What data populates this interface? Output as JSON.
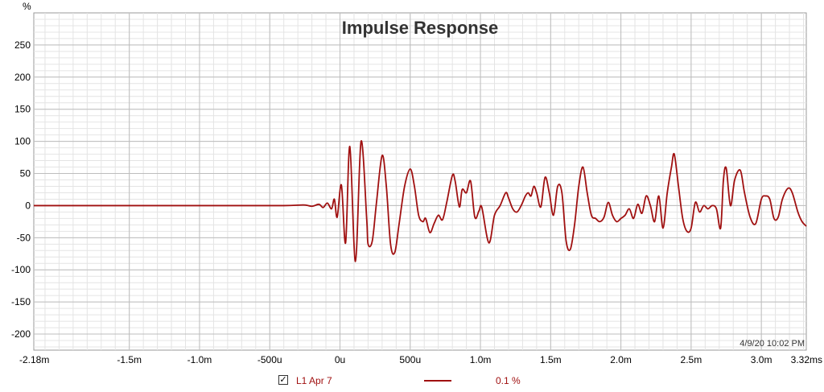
{
  "chart_data": {
    "type": "line",
    "title": "Impulse Response",
    "yunit": "%",
    "xunit": "s",
    "xlim": [
      -0.00218,
      0.00332
    ],
    "ylim": [
      -225,
      300
    ],
    "x_ticks": [
      {
        "v": -0.00218,
        "label": "-2.18m"
      },
      {
        "v": -0.0015,
        "label": "-1.5m"
      },
      {
        "v": -0.001,
        "label": "-1.0m"
      },
      {
        "v": -0.0005,
        "label": "-500u"
      },
      {
        "v": 0,
        "label": "0u"
      },
      {
        "v": 0.0005,
        "label": "500u"
      },
      {
        "v": 0.001,
        "label": "1.0m"
      },
      {
        "v": 0.0015,
        "label": "1.5m"
      },
      {
        "v": 0.002,
        "label": "2.0m"
      },
      {
        "v": 0.0025,
        "label": "2.5m"
      },
      {
        "v": 0.003,
        "label": "3.0m"
      },
      {
        "v": 0.00332,
        "label": "3.32ms"
      }
    ],
    "y_ticks": [
      250,
      200,
      150,
      100,
      50,
      0,
      -50,
      -100,
      -150,
      -200
    ],
    "timestamp": "4/9/20 10:02 PM",
    "grid": true,
    "series": [
      {
        "name": "L1 Apr 7",
        "smoothing": "0.1 %",
        "color": "#a01010",
        "points": [
          [
            -0.00218,
            0
          ],
          [
            -0.0017,
            0
          ],
          [
            -0.0012,
            0
          ],
          [
            -0.0008,
            0
          ],
          [
            -0.0004,
            0
          ],
          [
            -0.00026,
            1
          ],
          [
            -0.0002,
            -1
          ],
          [
            -0.00015,
            2
          ],
          [
            -0.00012,
            -3
          ],
          [
            -9e-05,
            4
          ],
          [
            -6e-05,
            -5
          ],
          [
            -4e-05,
            10
          ],
          [
            -2e-05,
            -18
          ],
          [
            1e-05,
            32
          ],
          [
            4e-05,
            -58
          ],
          [
            7e-05,
            92
          ],
          [
            0.00011,
            -87
          ],
          [
            0.00015,
            100
          ],
          [
            0.00019,
            -20
          ],
          [
            0.0002,
            -60
          ],
          [
            0.00023,
            -55
          ],
          [
            0.00026,
            5
          ],
          [
            0.0003,
            78
          ],
          [
            0.00033,
            30
          ],
          [
            0.00036,
            -60
          ],
          [
            0.00039,
            -73
          ],
          [
            0.00042,
            -30
          ],
          [
            0.00046,
            30
          ],
          [
            0.0005,
            57
          ],
          [
            0.00053,
            30
          ],
          [
            0.00056,
            -15
          ],
          [
            0.00059,
            -25
          ],
          [
            0.00061,
            -20
          ],
          [
            0.00064,
            -42
          ],
          [
            0.00067,
            -28
          ],
          [
            0.0007,
            -15
          ],
          [
            0.00073,
            -22
          ],
          [
            0.00076,
            5
          ],
          [
            0.0008,
            47
          ],
          [
            0.00082,
            38
          ],
          [
            0.00085,
            -2
          ],
          [
            0.00087,
            25
          ],
          [
            0.0009,
            20
          ],
          [
            0.00093,
            38
          ],
          [
            0.00096,
            -18
          ],
          [
            0.00099,
            -8
          ],
          [
            0.00101,
            -3
          ],
          [
            0.00106,
            -58
          ],
          [
            0.0011,
            -15
          ],
          [
            0.00114,
            0
          ],
          [
            0.00118,
            20
          ],
          [
            0.0012,
            12
          ],
          [
            0.00123,
            -5
          ],
          [
            0.00126,
            -10
          ],
          [
            0.00129,
            0
          ],
          [
            0.00132,
            15
          ],
          [
            0.00134,
            20
          ],
          [
            0.00136,
            15
          ],
          [
            0.00138,
            30
          ],
          [
            0.0014,
            20
          ],
          [
            0.00143,
            -2
          ],
          [
            0.00146,
            44
          ],
          [
            0.00149,
            20
          ],
          [
            0.00152,
            -15
          ],
          [
            0.00155,
            30
          ],
          [
            0.00158,
            20
          ],
          [
            0.00161,
            -55
          ],
          [
            0.00164,
            -68
          ],
          [
            0.00167,
            -30
          ],
          [
            0.0017,
            30
          ],
          [
            0.00173,
            60
          ],
          [
            0.00176,
            20
          ],
          [
            0.00179,
            -15
          ],
          [
            0.00182,
            -20
          ],
          [
            0.00185,
            -25
          ],
          [
            0.00188,
            -18
          ],
          [
            0.00191,
            5
          ],
          [
            0.00194,
            -15
          ],
          [
            0.00197,
            -25
          ],
          [
            0.002,
            -20
          ],
          [
            0.00203,
            -15
          ],
          [
            0.00206,
            -5
          ],
          [
            0.00209,
            -20
          ],
          [
            0.00212,
            2
          ],
          [
            0.00215,
            -12
          ],
          [
            0.00218,
            15
          ],
          [
            0.00221,
            0
          ],
          [
            0.00224,
            -25
          ],
          [
            0.00227,
            15
          ],
          [
            0.0023,
            -35
          ],
          [
            0.00233,
            20
          ],
          [
            0.00236,
            60
          ],
          [
            0.00238,
            80
          ],
          [
            0.00241,
            30
          ],
          [
            0.00244,
            -20
          ],
          [
            0.00247,
            -40
          ],
          [
            0.0025,
            -35
          ],
          [
            0.00253,
            5
          ],
          [
            0.00256,
            -10
          ],
          [
            0.00259,
            0
          ],
          [
            0.00262,
            -5
          ],
          [
            0.00265,
            0
          ],
          [
            0.00268,
            -5
          ],
          [
            0.00271,
            -35
          ],
          [
            0.00273,
            40
          ],
          [
            0.00275,
            58
          ],
          [
            0.00278,
            0
          ],
          [
            0.00281,
            40
          ],
          [
            0.00285,
            55
          ],
          [
            0.00288,
            20
          ],
          [
            0.00292,
            -18
          ],
          [
            0.00296,
            -28
          ],
          [
            0.003,
            10
          ],
          [
            0.00303,
            15
          ],
          [
            0.00306,
            10
          ],
          [
            0.00309,
            -20
          ],
          [
            0.00312,
            -18
          ],
          [
            0.00315,
            10
          ],
          [
            0.00319,
            27
          ],
          [
            0.00322,
            20
          ],
          [
            0.00326,
            -10
          ],
          [
            0.00329,
            -25
          ],
          [
            0.00332,
            -32
          ]
        ]
      }
    ]
  },
  "legend": {
    "checkbox_mark": "✓",
    "series_name": "L1 Apr 7",
    "smoothing": "0.1 %"
  }
}
